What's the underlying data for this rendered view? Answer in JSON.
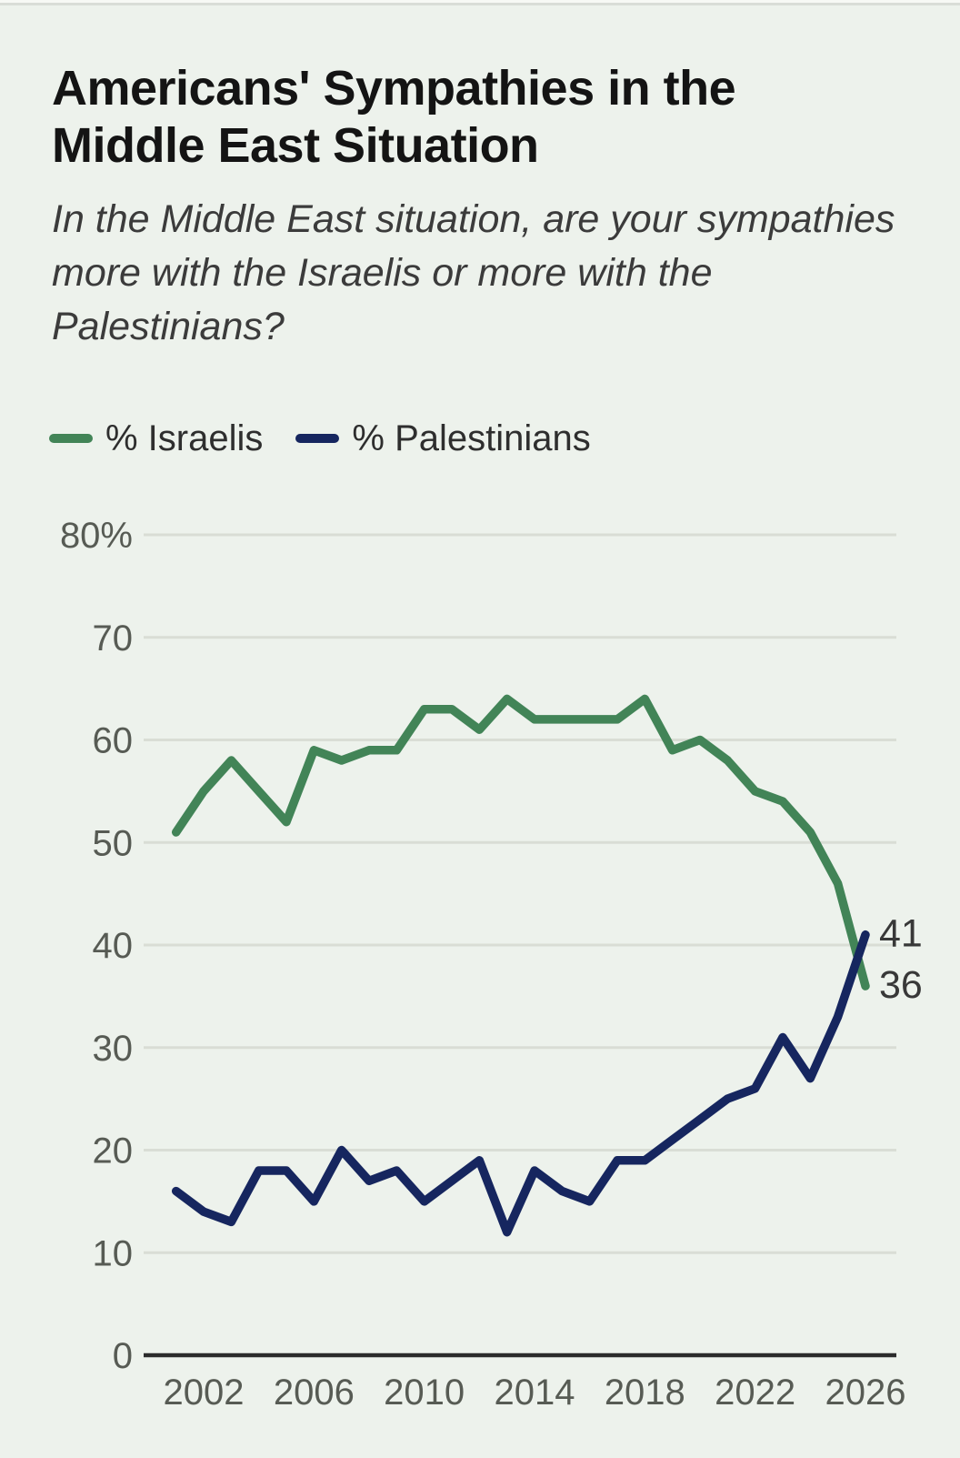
{
  "colors": {
    "background": "#edf2ec",
    "grid": "#d9ddd5",
    "axis": "#2b2b2b",
    "tick_text": "#575b54",
    "title_text": "#141414",
    "subtitle_text": "#3b3b3b",
    "end_label_text": "#383838",
    "israelis_green": "#428457",
    "palestinians_navy": "#16265f"
  },
  "chart_data": {
    "type": "line",
    "title": "Americans' Sympathies in the Middle East Situation",
    "subtitle": "In the Middle East situation, are your sympathies more with the Israelis or more with the Palestinians?",
    "grid": true,
    "legend_position": "top-left",
    "xlim": [
      2001,
      2026
    ],
    "ylim": [
      0,
      80
    ],
    "x": [
      2001,
      2002,
      2003,
      2004,
      2005,
      2006,
      2007,
      2008,
      2009,
      2010,
      2011,
      2012,
      2013,
      2014,
      2015,
      2016,
      2017,
      2018,
      2019,
      2020,
      2021,
      2022,
      2023,
      2024,
      2025,
      2026
    ],
    "series": [
      {
        "name": "% Israelis",
        "color": "#428457",
        "values": [
          51,
          55,
          58,
          55,
          52,
          59,
          58,
          59,
          59,
          63,
          63,
          61,
          64,
          62,
          62,
          62,
          62,
          64,
          59,
          60,
          58,
          55,
          54,
          51,
          46,
          36
        ],
        "end_label": "36"
      },
      {
        "name": "% Palestinians",
        "color": "#16265f",
        "values": [
          16,
          14,
          13,
          18,
          18,
          15,
          20,
          17,
          18,
          15,
          17,
          19,
          12,
          18,
          16,
          15,
          19,
          19,
          21,
          23,
          25,
          26,
          31,
          27,
          33,
          41
        ],
        "end_label": "41"
      }
    ],
    "y_ticks": [
      {
        "value": 80,
        "label": "80%"
      },
      {
        "value": 70,
        "label": "70"
      },
      {
        "value": 60,
        "label": "60"
      },
      {
        "value": 50,
        "label": "50"
      },
      {
        "value": 40,
        "label": "40"
      },
      {
        "value": 30,
        "label": "30"
      },
      {
        "value": 20,
        "label": "20"
      },
      {
        "value": 10,
        "label": "10"
      },
      {
        "value": 0,
        "label": "0"
      }
    ],
    "x_ticks": [
      {
        "value": 2002,
        "label": "2002"
      },
      {
        "value": 2006,
        "label": "2006"
      },
      {
        "value": 2010,
        "label": "2010"
      },
      {
        "value": 2014,
        "label": "2014"
      },
      {
        "value": 2018,
        "label": "2018"
      },
      {
        "value": 2022,
        "label": "2022"
      },
      {
        "value": 2026,
        "label": "2026"
      }
    ]
  }
}
